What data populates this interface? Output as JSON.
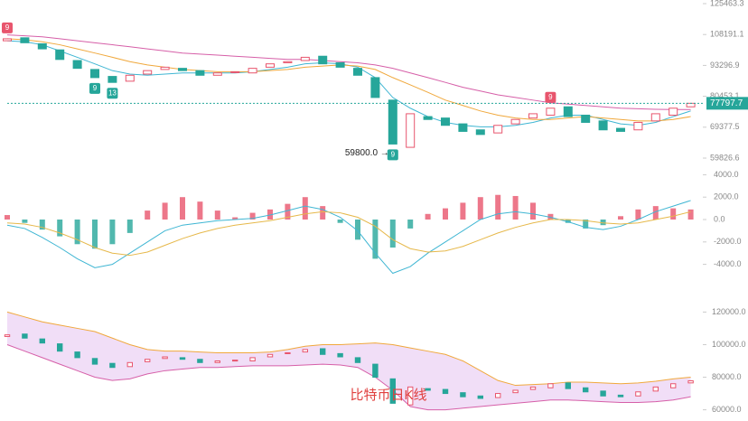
{
  "chart_data": [
    {
      "type": "candlestick",
      "log": true,
      "ylim": [
        59826.6,
        125463.3
      ],
      "yticks": [
        125463.3,
        108191.1,
        93296.9,
        80453.1,
        69377.5,
        59826.6
      ],
      "last_price": 77797.7,
      "up_color": "#e8556d",
      "down_color": "#26a69a",
      "open": [
        105000,
        106500,
        103500,
        100500,
        95500,
        91500,
        88500,
        86500,
        89500,
        91500,
        92000,
        91000,
        89000,
        90500,
        90000,
        92500,
        94500,
        95500,
        97500,
        94500,
        92000,
        88000,
        79000,
        63000,
        73000,
        72500,
        70500,
        68500,
        67500,
        70500,
        72500,
        73500,
        76500,
        73500,
        71500,
        69000,
        68500,
        71500,
        73500,
        76500
      ],
      "close": [
        106000,
        104000,
        101000,
        96000,
        92000,
        88000,
        86000,
        89000,
        91000,
        92500,
        91000,
        89000,
        90000,
        90500,
        92000,
        94000,
        95000,
        97000,
        94000,
        92500,
        89000,
        80000,
        64000,
        74000,
        72000,
        70000,
        68000,
        67000,
        70000,
        72000,
        74000,
        76000,
        73000,
        71000,
        68500,
        68000,
        71000,
        74000,
        76000,
        77800
      ],
      "series": [
        {
          "color": "#3fb6d3",
          "values": [
            105000,
            104500,
            103000,
            100000,
            97000,
            94000,
            91000,
            89500,
            89000,
            89500,
            90000,
            90000,
            90000,
            90000,
            90500,
            91500,
            92500,
            94000,
            94500,
            94000,
            92500,
            88000,
            80000,
            76000,
            73000,
            71000,
            70000,
            69500,
            69500,
            70000,
            71000,
            72500,
            73500,
            73500,
            72000,
            70500,
            70000,
            71000,
            73000,
            75000
          ]
        },
        {
          "color": "#f0a83c",
          "values": [
            106000,
            105500,
            104500,
            103000,
            101000,
            99000,
            97000,
            95000,
            93500,
            92500,
            91500,
            91000,
            90500,
            90500,
            90500,
            91000,
            91500,
            92500,
            93000,
            93500,
            93000,
            91500,
            88000,
            85000,
            82000,
            79000,
            77000,
            75000,
            73500,
            72500,
            72000,
            72000,
            72500,
            73000,
            72500,
            72000,
            71500,
            71500,
            72000,
            73000
          ]
        },
        {
          "color": "#d65fa8",
          "values": [
            108000,
            107500,
            107000,
            106000,
            105000,
            104000,
            103000,
            102000,
            101000,
            100000,
            99000,
            98500,
            98000,
            97500,
            97000,
            96500,
            96000,
            96000,
            95500,
            95000,
            94500,
            93500,
            92000,
            90000,
            88000,
            86000,
            84000,
            82500,
            81000,
            80000,
            79000,
            78000,
            77500,
            77000,
            76500,
            76000,
            75800,
            75600,
            75500,
            75500
          ]
        }
      ],
      "annotations": [
        {
          "text": "9",
          "index": 0,
          "color": "#e8556d"
        },
        {
          "text": "9",
          "index": 5,
          "color": "#26a69a"
        },
        {
          "text": "13",
          "index": 6,
          "color": "#26a69a"
        },
        {
          "text": "9",
          "index": 31,
          "color": "#e8556d"
        },
        {
          "text": "9",
          "index": 22,
          "color": "#26a69a"
        }
      ],
      "low_label": "59800.0 →"
    },
    {
      "type": "macd",
      "ylim": [
        -5000,
        5000
      ],
      "yticks": [
        {
          "value": 4000,
          "label": "4000.0"
        },
        {
          "value": 2000,
          "label": "2000.0"
        },
        {
          "value": 0,
          "label": "0.0"
        },
        {
          "value": -2000,
          "label": "-2000.0"
        },
        {
          "value": -4000,
          "label": "-4000.0"
        }
      ],
      "values": [
        400,
        -300,
        -900,
        -1500,
        -2200,
        -2600,
        -2200,
        -1200,
        800,
        1500,
        2000,
        1600,
        800,
        200,
        600,
        900,
        1400,
        2000,
        1200,
        -300,
        -1800,
        -3500,
        -2500,
        -800,
        500,
        1000,
        1500,
        2000,
        2200,
        2100,
        1500,
        500,
        -300,
        -800,
        -500,
        300,
        900,
        1200,
        1000,
        900
      ],
      "series": [
        {
          "color": "#3fb6d3",
          "values": [
            -500,
            -800,
            -1600,
            -2500,
            -3500,
            -4300,
            -4000,
            -3000,
            -2000,
            -1000,
            -500,
            -300,
            -100,
            0,
            100,
            400,
            800,
            1200,
            900,
            200,
            -1000,
            -3000,
            -4800,
            -4200,
            -3000,
            -2000,
            -1000,
            0,
            500,
            700,
            500,
            200,
            -200,
            -700,
            -900,
            -600,
            0,
            700,
            1200,
            1700
          ]
        },
        {
          "color": "#e6b84a",
          "values": [
            -300,
            -400,
            -700,
            -1200,
            -1800,
            -2500,
            -3000,
            -3200,
            -2900,
            -2300,
            -1700,
            -1200,
            -800,
            -500,
            -300,
            -100,
            200,
            500,
            700,
            600,
            200,
            -600,
            -1800,
            -2600,
            -2900,
            -2800,
            -2400,
            -1800,
            -1200,
            -700,
            -300,
            0,
            0,
            -100,
            -300,
            -400,
            -300,
            0,
            300,
            700
          ]
        }
      ]
    },
    {
      "type": "bollinger",
      "ylim": [
        57000,
        123000
      ],
      "yticks": [
        {
          "value": 120000,
          "label": "120000.0"
        },
        {
          "value": 100000,
          "label": "100000.0"
        },
        {
          "value": 80000,
          "label": "80000.0"
        },
        {
          "value": 60000,
          "label": "60000.0"
        }
      ],
      "upper": [
        120000,
        117000,
        114000,
        112000,
        110000,
        108000,
        104000,
        100000,
        97000,
        96000,
        96000,
        95500,
        95000,
        95000,
        95000,
        95500,
        97000,
        99000,
        100000,
        100000,
        100500,
        101000,
        100000,
        98000,
        96000,
        94000,
        90000,
        84000,
        78000,
        75000,
        75500,
        76000,
        77000,
        77000,
        76500,
        76000,
        76500,
        77500,
        79000,
        80000
      ],
      "lower": [
        100000,
        96000,
        92000,
        88000,
        84000,
        80000,
        78000,
        79000,
        82000,
        84000,
        85000,
        86000,
        86000,
        86500,
        87000,
        87000,
        87000,
        87500,
        88000,
        87500,
        86000,
        80000,
        72000,
        62000,
        60000,
        60000,
        61000,
        62000,
        63000,
        64000,
        65000,
        66000,
        66000,
        65500,
        65000,
        64500,
        64500,
        65000,
        66000,
        68000
      ],
      "band_color": "#e7c8f2",
      "watermark": "比特币日K线"
    }
  ]
}
